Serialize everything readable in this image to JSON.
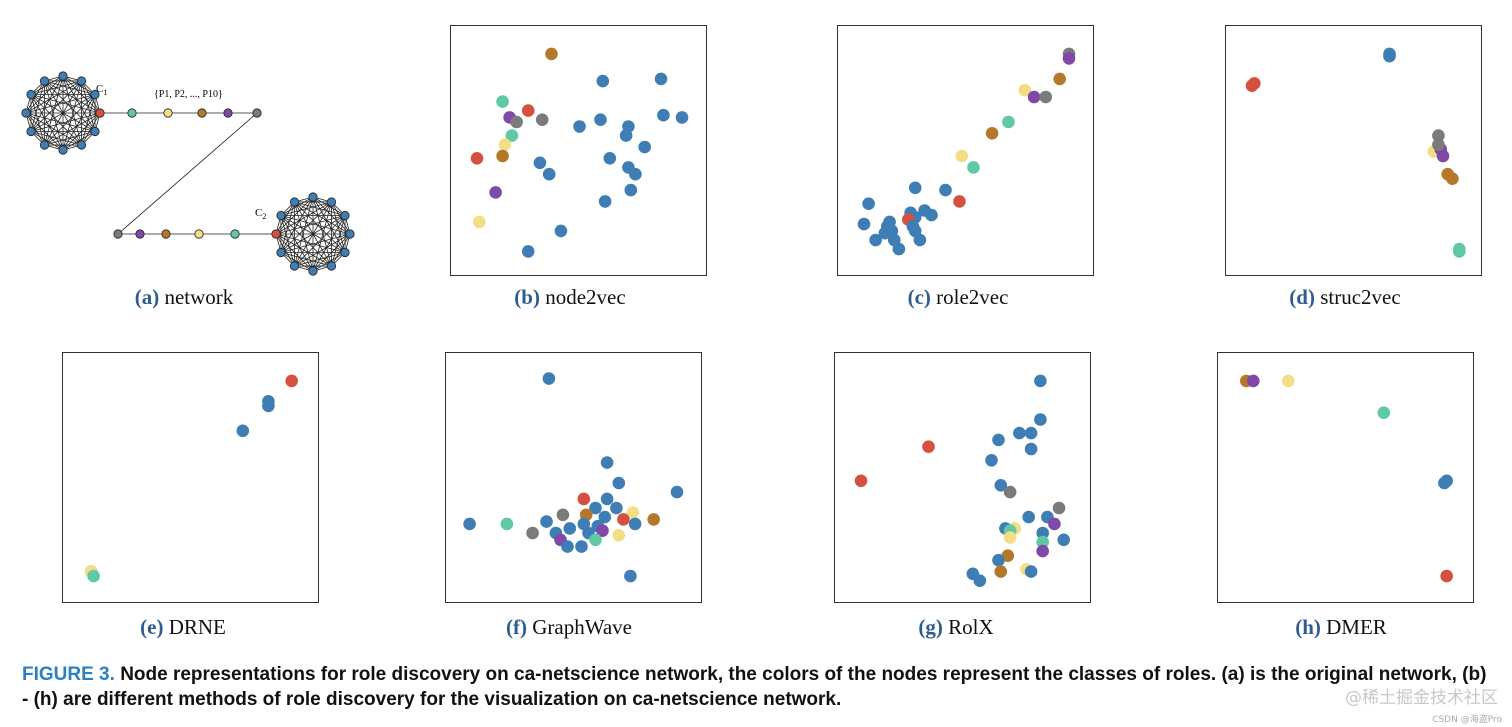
{
  "colors": {
    "blue": "#3f7db5",
    "red": "#d5513f",
    "green": "#5fc8a4",
    "yellow": "#f3de86",
    "brown": "#b5782a",
    "purple": "#8048a8",
    "gray": "#7b7b7b"
  },
  "network": {
    "label": "(a)",
    "name": "network",
    "c1_label": "C",
    "c1_sub": "1",
    "c2_label": "C",
    "c2_sub": "2",
    "path_label": "{P1, P2, ..., P10}"
  },
  "chart_data": [
    {
      "type": "scatter",
      "id": "b",
      "label": "(b)",
      "title": "node2vec",
      "xlim": [
        0,
        100
      ],
      "ylim": [
        0,
        100
      ],
      "points": [
        {
          "x": 38,
          "y": 93,
          "c": "brown"
        },
        {
          "x": 60,
          "y": 81,
          "c": "blue"
        },
        {
          "x": 85,
          "y": 82,
          "c": "blue"
        },
        {
          "x": 17,
          "y": 72,
          "c": "green"
        },
        {
          "x": 28,
          "y": 68,
          "c": "red"
        },
        {
          "x": 20,
          "y": 65,
          "c": "purple"
        },
        {
          "x": 23,
          "y": 63,
          "c": "gray"
        },
        {
          "x": 34,
          "y": 64,
          "c": "gray"
        },
        {
          "x": 59,
          "y": 64,
          "c": "blue"
        },
        {
          "x": 86,
          "y": 66,
          "c": "blue"
        },
        {
          "x": 94,
          "y": 65,
          "c": "blue"
        },
        {
          "x": 50,
          "y": 61,
          "c": "blue"
        },
        {
          "x": 71,
          "y": 61,
          "c": "blue"
        },
        {
          "x": 21,
          "y": 57,
          "c": "green"
        },
        {
          "x": 18,
          "y": 53,
          "c": "yellow"
        },
        {
          "x": 70,
          "y": 57,
          "c": "blue"
        },
        {
          "x": 78,
          "y": 52,
          "c": "blue"
        },
        {
          "x": 17,
          "y": 48,
          "c": "brown"
        },
        {
          "x": 6,
          "y": 47,
          "c": "red"
        },
        {
          "x": 33,
          "y": 45,
          "c": "blue"
        },
        {
          "x": 63,
          "y": 47,
          "c": "blue"
        },
        {
          "x": 71,
          "y": 43,
          "c": "blue"
        },
        {
          "x": 37,
          "y": 40,
          "c": "blue"
        },
        {
          "x": 74,
          "y": 40,
          "c": "blue"
        },
        {
          "x": 14,
          "y": 32,
          "c": "purple"
        },
        {
          "x": 72,
          "y": 33,
          "c": "blue"
        },
        {
          "x": 61,
          "y": 28,
          "c": "blue"
        },
        {
          "x": 7,
          "y": 19,
          "c": "yellow"
        },
        {
          "x": 42,
          "y": 15,
          "c": "blue"
        },
        {
          "x": 28,
          "y": 6,
          "c": "blue"
        }
      ]
    },
    {
      "type": "scatter",
      "id": "c",
      "label": "(c)",
      "title": "role2vec",
      "xlim": [
        0,
        100
      ],
      "ylim": [
        0,
        100
      ],
      "points": [
        {
          "x": 94,
          "y": 93,
          "c": "gray"
        },
        {
          "x": 94,
          "y": 91,
          "c": "purple"
        },
        {
          "x": 90,
          "y": 82,
          "c": "brown"
        },
        {
          "x": 75,
          "y": 77,
          "c": "yellow"
        },
        {
          "x": 79,
          "y": 74,
          "c": "purple"
        },
        {
          "x": 84,
          "y": 74,
          "c": "gray"
        },
        {
          "x": 68,
          "y": 63,
          "c": "green"
        },
        {
          "x": 61,
          "y": 58,
          "c": "brown"
        },
        {
          "x": 48,
          "y": 48,
          "c": "yellow"
        },
        {
          "x": 53,
          "y": 43,
          "c": "green"
        },
        {
          "x": 28,
          "y": 34,
          "c": "blue"
        },
        {
          "x": 41,
          "y": 33,
          "c": "blue"
        },
        {
          "x": 47,
          "y": 28,
          "c": "red"
        },
        {
          "x": 8,
          "y": 27,
          "c": "blue"
        },
        {
          "x": 32,
          "y": 24,
          "c": "blue"
        },
        {
          "x": 26,
          "y": 23,
          "c": "blue"
        },
        {
          "x": 35,
          "y": 22,
          "c": "blue"
        },
        {
          "x": 17,
          "y": 19,
          "c": "blue"
        },
        {
          "x": 28,
          "y": 21,
          "c": "blue"
        },
        {
          "x": 25,
          "y": 20,
          "c": "red"
        },
        {
          "x": 6,
          "y": 18,
          "c": "blue"
        },
        {
          "x": 16,
          "y": 17,
          "c": "blue"
        },
        {
          "x": 27,
          "y": 17,
          "c": "blue"
        },
        {
          "x": 18,
          "y": 15,
          "c": "blue"
        },
        {
          "x": 15,
          "y": 14,
          "c": "blue"
        },
        {
          "x": 28,
          "y": 15,
          "c": "blue"
        },
        {
          "x": 11,
          "y": 11,
          "c": "blue"
        },
        {
          "x": 19,
          "y": 11,
          "c": "blue"
        },
        {
          "x": 30,
          "y": 11,
          "c": "blue"
        },
        {
          "x": 21,
          "y": 7,
          "c": "blue"
        }
      ]
    },
    {
      "type": "scatter",
      "id": "d",
      "label": "(d)",
      "title": "struc2vec",
      "xlim": [
        0,
        100
      ],
      "ylim": [
        0,
        100
      ],
      "points": [
        {
          "x": 65,
          "y": 93,
          "c": "blue"
        },
        {
          "x": 65,
          "y": 92,
          "c": "blue"
        },
        {
          "x": 7,
          "y": 80,
          "c": "red"
        },
        {
          "x": 6,
          "y": 79,
          "c": "red"
        },
        {
          "x": 86,
          "y": 57,
          "c": "gray"
        },
        {
          "x": 84,
          "y": 50,
          "c": "yellow"
        },
        {
          "x": 87,
          "y": 51,
          "c": "purple"
        },
        {
          "x": 88,
          "y": 48,
          "c": "purple"
        },
        {
          "x": 86,
          "y": 53,
          "c": "gray"
        },
        {
          "x": 90,
          "y": 40,
          "c": "brown"
        },
        {
          "x": 92,
          "y": 38,
          "c": "brown"
        },
        {
          "x": 95,
          "y": 6,
          "c": "green"
        },
        {
          "x": 95,
          "y": 7,
          "c": "green"
        }
      ]
    },
    {
      "type": "scatter",
      "id": "e",
      "label": "(e)",
      "title": "DRNE",
      "xlim": [
        0,
        100
      ],
      "ylim": [
        0,
        100
      ],
      "points": [
        {
          "x": 93,
          "y": 93,
          "c": "red"
        },
        {
          "x": 83,
          "y": 84,
          "c": "blue"
        },
        {
          "x": 83,
          "y": 82,
          "c": "blue"
        },
        {
          "x": 72,
          "y": 71,
          "c": "blue"
        },
        {
          "x": 7,
          "y": 9,
          "c": "brown"
        },
        {
          "x": 7,
          "y": 9,
          "c": "yellow"
        },
        {
          "x": 8,
          "y": 7,
          "c": "green"
        }
      ]
    },
    {
      "type": "scatter",
      "id": "f",
      "label": "(f)",
      "title": "GraphWave",
      "xlim": [
        0,
        100
      ],
      "ylim": [
        0,
        100
      ],
      "points": [
        {
          "x": 39,
          "y": 94,
          "c": "blue"
        },
        {
          "x": 64,
          "y": 57,
          "c": "blue"
        },
        {
          "x": 69,
          "y": 48,
          "c": "blue"
        },
        {
          "x": 94,
          "y": 44,
          "c": "blue"
        },
        {
          "x": 54,
          "y": 41,
          "c": "red"
        },
        {
          "x": 64,
          "y": 41,
          "c": "blue"
        },
        {
          "x": 59,
          "y": 37,
          "c": "blue"
        },
        {
          "x": 68,
          "y": 37,
          "c": "blue"
        },
        {
          "x": 45,
          "y": 34,
          "c": "gray"
        },
        {
          "x": 55,
          "y": 34,
          "c": "brown"
        },
        {
          "x": 63,
          "y": 33,
          "c": "blue"
        },
        {
          "x": 75,
          "y": 35,
          "c": "yellow"
        },
        {
          "x": 71,
          "y": 32,
          "c": "red"
        },
        {
          "x": 84,
          "y": 32,
          "c": "brown"
        },
        {
          "x": 38,
          "y": 31,
          "c": "blue"
        },
        {
          "x": 5,
          "y": 30,
          "c": "blue"
        },
        {
          "x": 21,
          "y": 30,
          "c": "green"
        },
        {
          "x": 54,
          "y": 30,
          "c": "blue"
        },
        {
          "x": 60,
          "y": 29,
          "c": "blue"
        },
        {
          "x": 76,
          "y": 30,
          "c": "blue"
        },
        {
          "x": 48,
          "y": 28,
          "c": "blue"
        },
        {
          "x": 62,
          "y": 27,
          "c": "purple"
        },
        {
          "x": 32,
          "y": 26,
          "c": "gray"
        },
        {
          "x": 42,
          "y": 26,
          "c": "blue"
        },
        {
          "x": 56,
          "y": 26,
          "c": "blue"
        },
        {
          "x": 69,
          "y": 25,
          "c": "yellow"
        },
        {
          "x": 44,
          "y": 23,
          "c": "purple"
        },
        {
          "x": 59,
          "y": 23,
          "c": "green"
        },
        {
          "x": 47,
          "y": 20,
          "c": "blue"
        },
        {
          "x": 53,
          "y": 20,
          "c": "blue"
        },
        {
          "x": 74,
          "y": 7,
          "c": "blue"
        }
      ]
    },
    {
      "type": "scatter",
      "id": "g",
      "label": "(g)",
      "title": "RolX",
      "xlim": [
        0,
        100
      ],
      "ylim": [
        0,
        100
      ],
      "points": [
        {
          "x": 83,
          "y": 93,
          "c": "blue"
        },
        {
          "x": 83,
          "y": 76,
          "c": "blue"
        },
        {
          "x": 74,
          "y": 70,
          "c": "blue"
        },
        {
          "x": 79,
          "y": 70,
          "c": "blue"
        },
        {
          "x": 65,
          "y": 67,
          "c": "blue"
        },
        {
          "x": 35,
          "y": 64,
          "c": "red"
        },
        {
          "x": 79,
          "y": 63,
          "c": "blue"
        },
        {
          "x": 62,
          "y": 58,
          "c": "blue"
        },
        {
          "x": 6,
          "y": 49,
          "c": "red"
        },
        {
          "x": 66,
          "y": 47,
          "c": "blue"
        },
        {
          "x": 70,
          "y": 44,
          "c": "gray"
        },
        {
          "x": 91,
          "y": 37,
          "c": "gray"
        },
        {
          "x": 78,
          "y": 33,
          "c": "blue"
        },
        {
          "x": 86,
          "y": 33,
          "c": "blue"
        },
        {
          "x": 89,
          "y": 30,
          "c": "purple"
        },
        {
          "x": 68,
          "y": 28,
          "c": "blue"
        },
        {
          "x": 72,
          "y": 28,
          "c": "yellow"
        },
        {
          "x": 70,
          "y": 27,
          "c": "green"
        },
        {
          "x": 84,
          "y": 26,
          "c": "blue"
        },
        {
          "x": 93,
          "y": 23,
          "c": "blue"
        },
        {
          "x": 84,
          "y": 22,
          "c": "green"
        },
        {
          "x": 70,
          "y": 24,
          "c": "yellow"
        },
        {
          "x": 84,
          "y": 18,
          "c": "purple"
        },
        {
          "x": 69,
          "y": 16,
          "c": "brown"
        },
        {
          "x": 65,
          "y": 14,
          "c": "blue"
        },
        {
          "x": 77,
          "y": 10,
          "c": "yellow"
        },
        {
          "x": 79,
          "y": 9,
          "c": "blue"
        },
        {
          "x": 66,
          "y": 9,
          "c": "brown"
        },
        {
          "x": 54,
          "y": 8,
          "c": "blue"
        },
        {
          "x": 57,
          "y": 5,
          "c": "blue"
        }
      ]
    },
    {
      "type": "scatter",
      "id": "h",
      "label": "(h)",
      "title": "DMER",
      "xlim": [
        0,
        100
      ],
      "ylim": [
        0,
        100
      ],
      "points": [
        {
          "x": 7,
          "y": 93,
          "c": "brown"
        },
        {
          "x": 10,
          "y": 93,
          "c": "purple"
        },
        {
          "x": 25,
          "y": 93,
          "c": "yellow"
        },
        {
          "x": 66,
          "y": 79,
          "c": "green"
        },
        {
          "x": 93,
          "y": 49,
          "c": "blue"
        },
        {
          "x": 92,
          "y": 48,
          "c": "blue"
        },
        {
          "x": 93,
          "y": 7,
          "c": "red"
        }
      ]
    }
  ],
  "caption": {
    "fig_label": "FIGURE 3.",
    "text": "Node representations for role discovery on ca-netscience network, the colors of the nodes represent the classes of roles. (a) is the original network, (b) - (h) are different methods of role discovery for the visualization on ca-netscience network."
  },
  "watermark": {
    "main": "@稀土掘金技术社区",
    "small": "CSDN @海盗Pro"
  }
}
